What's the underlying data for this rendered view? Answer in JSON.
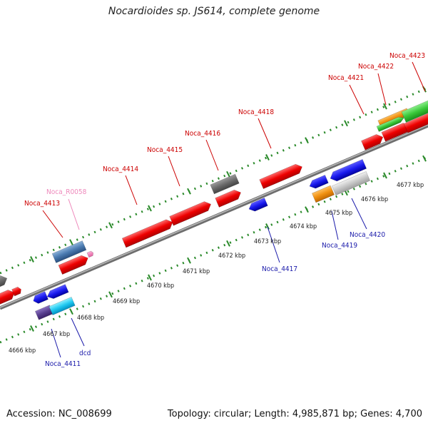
{
  "title": "Nocardioides sp. JS614, complete genome",
  "footer": {
    "accession": "Accession: NC_008699",
    "summary": "Topology: circular; Length: 4,985,871 bp; Genes: 4,700"
  },
  "colors": {
    "backbone": "#8a8a8a",
    "tick": "#2a8a2a",
    "forward_label": "#cc0000",
    "reverse_label": "#1a1aaa",
    "rna_label": "#ee88bb"
  },
  "scale_labels": [
    "4666 kbp",
    "4667 kbp",
    "4668 kbp",
    "4669 kbp",
    "4670 kbp",
    "4671 kbp",
    "4672 kbp",
    "4673 kbp",
    "4674 kbp",
    "4675 kbp",
    "4676 kbp",
    "4677 kbp"
  ],
  "gene_labels": [
    {
      "text": "Noca_4413",
      "strand": "forward"
    },
    {
      "text": "Noca_R0058",
      "strand": "rna"
    },
    {
      "text": "Noca_4414",
      "strand": "forward"
    },
    {
      "text": "Noca_4415",
      "strand": "forward"
    },
    {
      "text": "Noca_4416",
      "strand": "forward"
    },
    {
      "text": "Noca_4418",
      "strand": "forward"
    },
    {
      "text": "Noca_4421",
      "strand": "forward"
    },
    {
      "text": "Noca_4422",
      "strand": "forward"
    },
    {
      "text": "Noca_4423",
      "strand": "forward"
    },
    {
      "text": "Noca_4417",
      "strand": "reverse"
    },
    {
      "text": "Noca_4419",
      "strand": "reverse"
    },
    {
      "text": "Noca_4420",
      "strand": "reverse"
    },
    {
      "text": "dcd",
      "strand": "reverse"
    },
    {
      "text": "Noca_4411",
      "strand": "reverse"
    }
  ]
}
